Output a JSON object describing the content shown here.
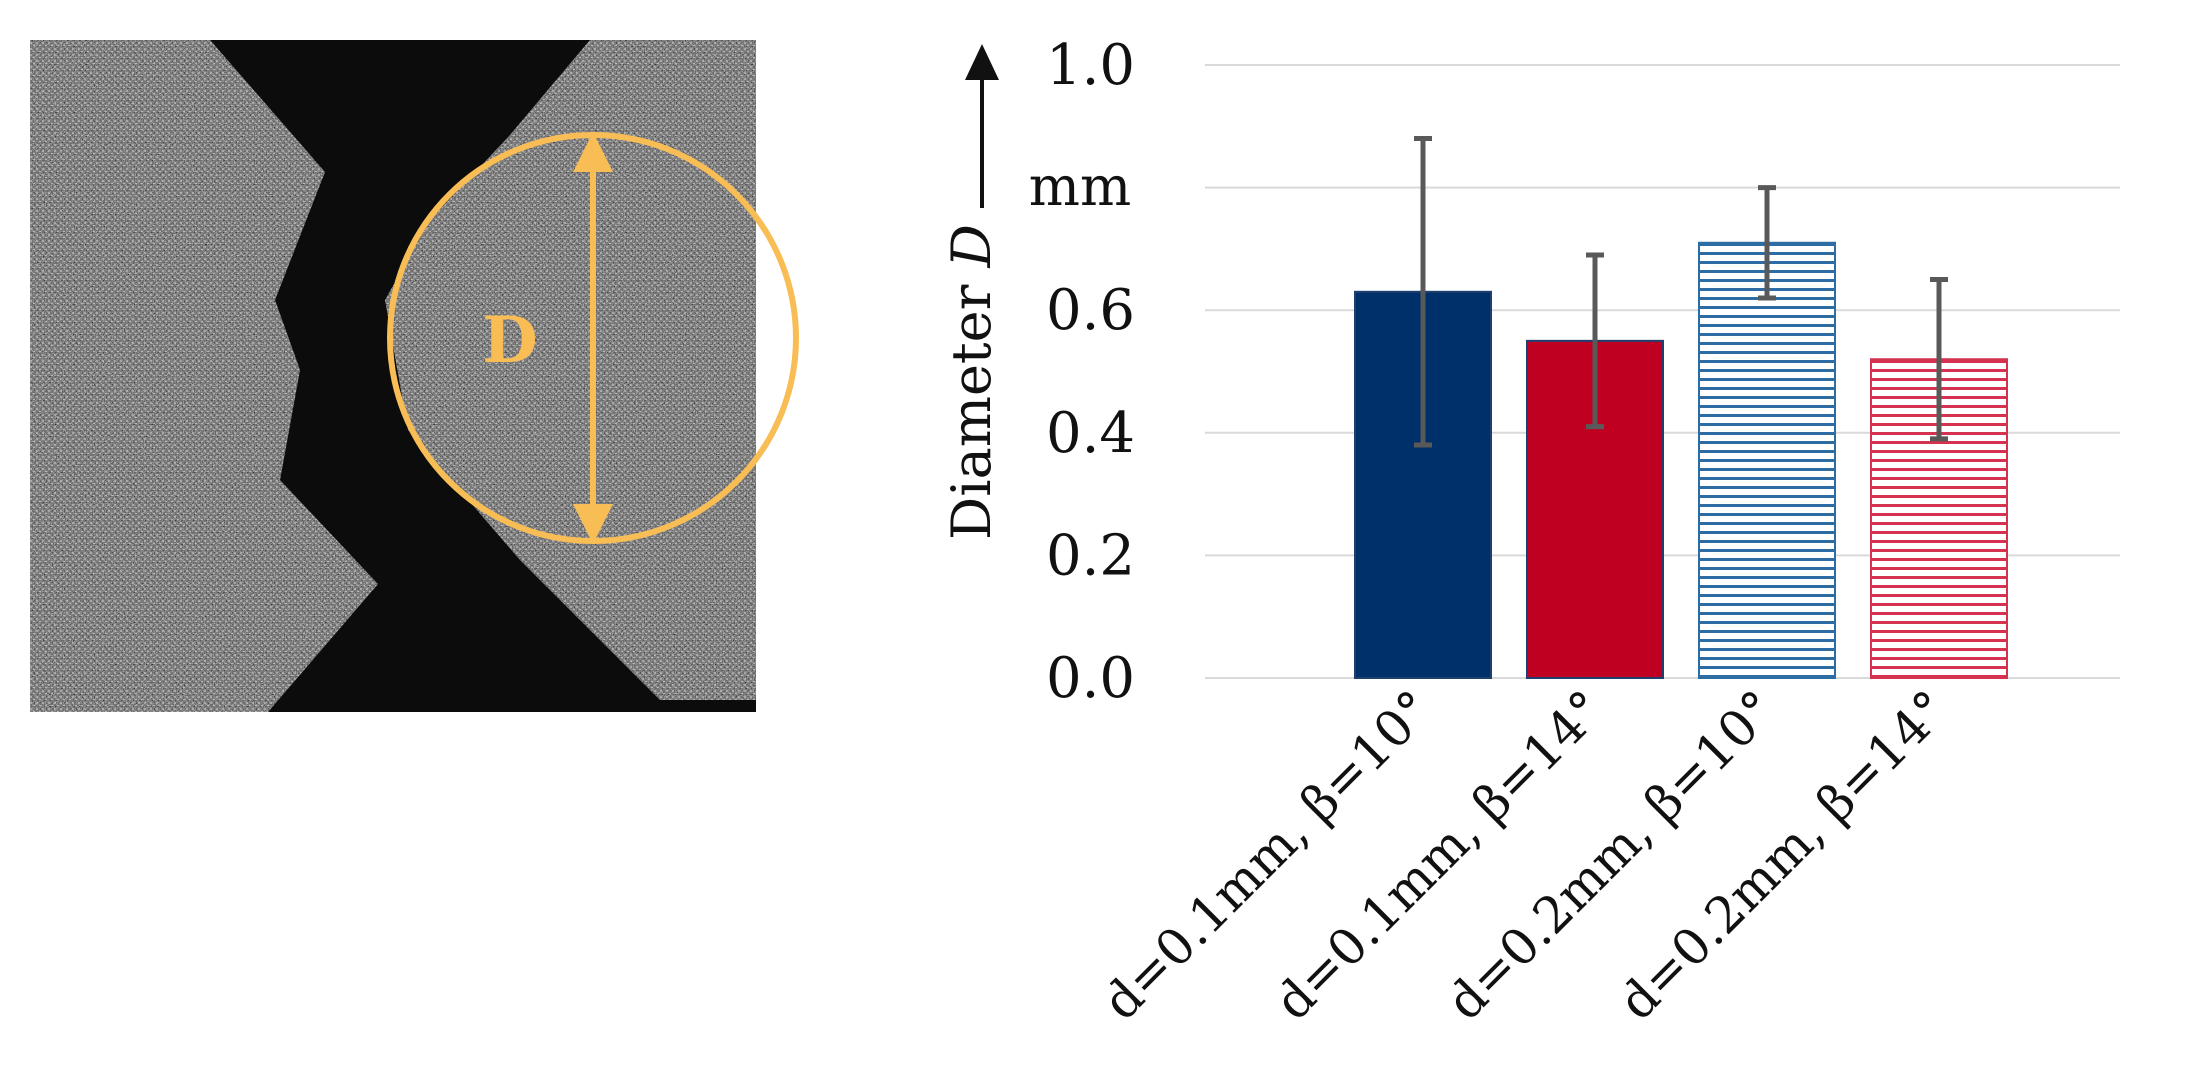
{
  "micrograph": {
    "label": "D",
    "accent_color": "#f8bd55"
  },
  "chart_data": {
    "type": "bar",
    "ylabel": "Diameter D",
    "ylabel_main": "Diameter ",
    "ylabel_var": "D",
    "yunit": "mm",
    "ylim": [
      0,
      1.0
    ],
    "yticks": [
      0.0,
      0.2,
      0.4,
      0.6,
      0.8,
      1.0
    ],
    "ytick_labels": [
      "0.0",
      "0.2",
      "0.4",
      "0.6",
      "",
      "1.0"
    ],
    "grid": true,
    "categories": [
      "d=0.1mm, β=10°",
      "d=0.1mm, β=14°",
      "d=0.2mm, β=10°",
      "d=0.2mm, β=14°"
    ],
    "values": [
      0.63,
      0.55,
      0.71,
      0.52
    ],
    "error_low": [
      0.38,
      0.41,
      0.62,
      0.39
    ],
    "error_high": [
      0.88,
      0.69,
      0.8,
      0.65
    ],
    "colors": [
      "#00306a",
      "#c00020",
      "#2e6da4",
      "#d4324e"
    ],
    "patterns": [
      "solid",
      "solid",
      "hlines",
      "hlines"
    ]
  }
}
